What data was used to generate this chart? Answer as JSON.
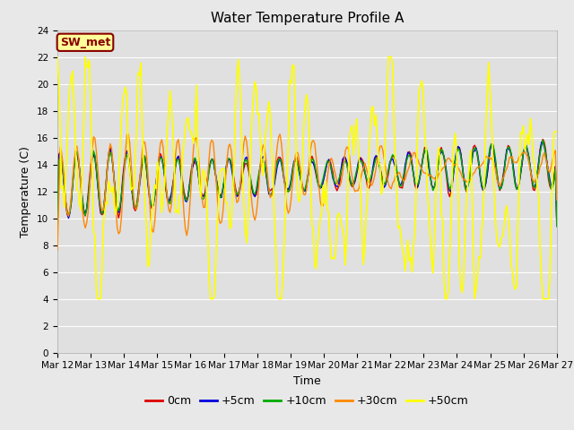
{
  "title": "Water Temperature Profile A",
  "xlabel": "Time",
  "ylabel": "Temperature (C)",
  "ylim": [
    0,
    24
  ],
  "annotation": "SW_met",
  "x_tick_labels": [
    "Mar 12",
    "Mar 13",
    "Mar 14",
    "Mar 15",
    "Mar 16",
    "Mar 17",
    "Mar 18",
    "Mar 19",
    "Mar 20",
    "Mar 21",
    "Mar 22",
    "Mar 23",
    "Mar 24",
    "Mar 25",
    "Mar 26",
    "Mar 27"
  ],
  "series_labels": [
    "0cm",
    "+5cm",
    "+10cm",
    "+30cm",
    "+50cm"
  ],
  "series_colors": [
    "#dd0000",
    "#0000dd",
    "#00aa00",
    "#ff8800",
    "#ffff00"
  ],
  "series_linewidths": [
    1.0,
    1.0,
    1.0,
    1.0,
    1.2
  ],
  "fig_bg_color": "#e8e8e8",
  "plot_bg_color": "#e0e0e0",
  "plot_bg_color_lower": "#ffffff",
  "title_fontsize": 11,
  "axis_label_fontsize": 9,
  "tick_fontsize": 7.5,
  "legend_fontsize": 9,
  "annotation_bg": "#ffff99",
  "annotation_border": "#880000",
  "annotation_text_color": "#880000",
  "y_ticks": [
    0,
    2,
    4,
    6,
    8,
    10,
    12,
    14,
    16,
    18,
    20,
    22,
    24
  ],
  "grid_color": "#ffffff",
  "num_days": 15,
  "n_pts": 360
}
